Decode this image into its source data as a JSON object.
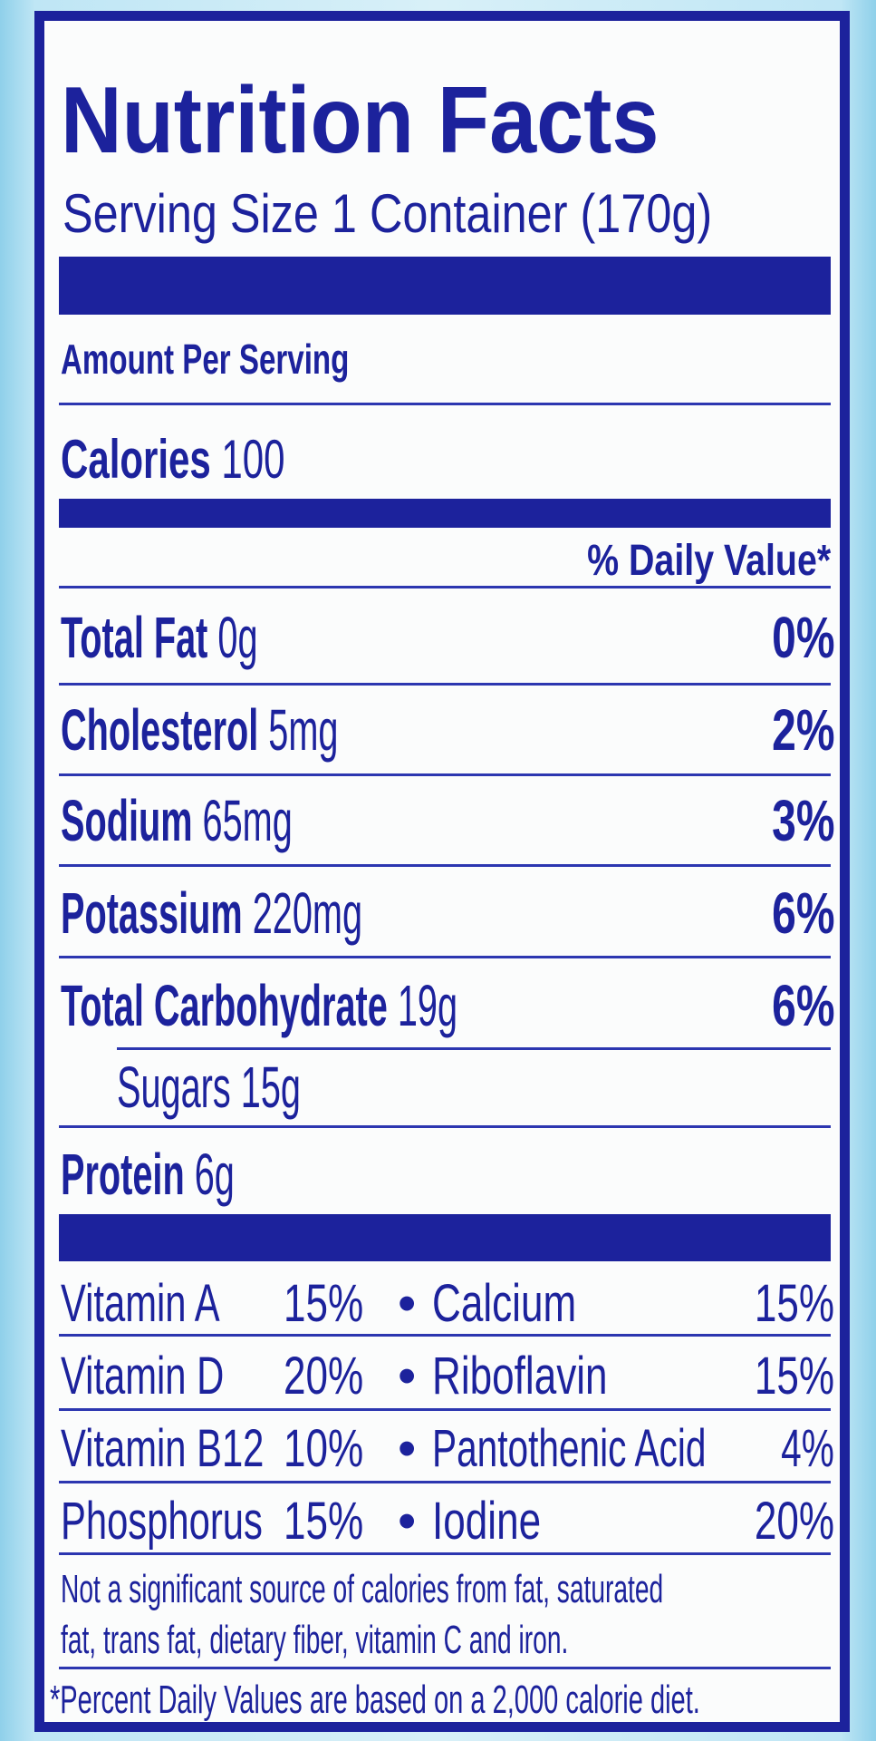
{
  "title": "Nutrition Facts",
  "serving_size": "Serving Size 1 Container (170g)",
  "amount_per_serving": "Amount Per Serving",
  "calories": {
    "label": "Calories",
    "value": "100"
  },
  "daily_value_header": "% Daily Value*",
  "nutrients": [
    {
      "label": "Total Fat",
      "amount": "0g",
      "dv": "0%"
    },
    {
      "label": "Cholesterol",
      "amount": "5mg",
      "dv": "2%"
    },
    {
      "label": "Sodium",
      "amount": "65mg",
      "dv": "3%"
    },
    {
      "label": "Potassium",
      "amount": "220mg",
      "dv": "6%"
    },
    {
      "label": "Total Carbohydrate",
      "amount": "19g",
      "dv": "6%"
    },
    {
      "label": "Sugars",
      "amount": "15g",
      "dv": ""
    },
    {
      "label": "Protein",
      "amount": "6g",
      "dv": ""
    }
  ],
  "vitamins": [
    {
      "left_name": "Vitamin A",
      "left_pct": "15%",
      "right_name": "Calcium",
      "right_pct": "15%"
    },
    {
      "left_name": "Vitamin D",
      "left_pct": "20%",
      "right_name": "Riboflavin",
      "right_pct": "15%"
    },
    {
      "left_name": "Vitamin B12",
      "left_pct": "10%",
      "right_name": "Pantothenic Acid",
      "right_pct": "4%"
    },
    {
      "left_name": "Phosphorus",
      "left_pct": "15%",
      "right_name": "Iodine",
      "right_pct": "20%"
    }
  ],
  "bullet": "•",
  "footnote_line1": "Not a significant source of calories from fat, saturated",
  "footnote_line2": "fat, trans fat, dietary fiber, vitamin C and iron.",
  "daily_value_note": "*Percent Daily Values are based on a 2,000 calorie diet.",
  "colors": {
    "ink": "#1c229c",
    "label_bg": "#fbfcfc",
    "package_bg": "#bfe6f5"
  }
}
